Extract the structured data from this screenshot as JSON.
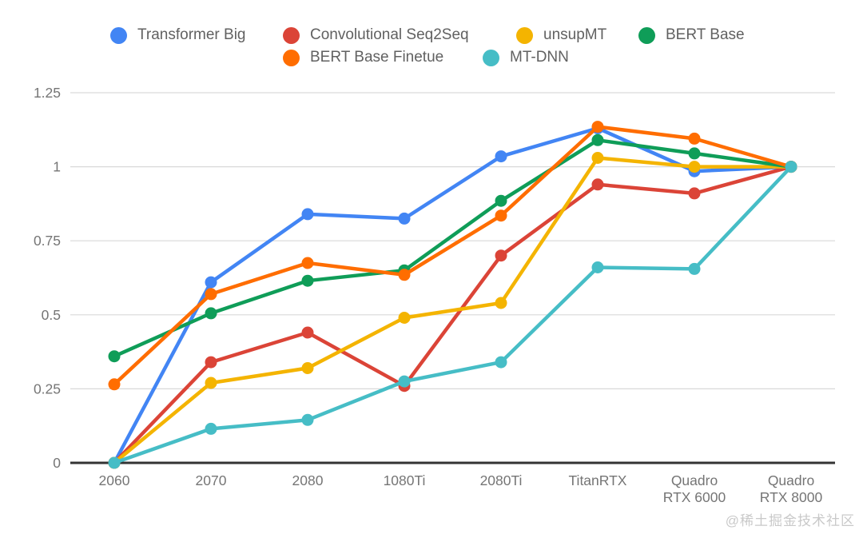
{
  "chart_data": {
    "type": "line",
    "categories": [
      "2060",
      "2070",
      "2080",
      "1080Ti",
      "2080Ti",
      "TitanRTX",
      "Quadro RTX 6000",
      "Quadro RTX 8000"
    ],
    "x_tick_labels": [
      "2060",
      "2070",
      "2080",
      "1080Ti",
      "2080Ti",
      "TitanRTX",
      "Quadro\nRTX 6000",
      "Quadro\nRTX 8000"
    ],
    "series": [
      {
        "name": "Transformer Big",
        "color": "#4285F4",
        "values": [
          0,
          0.61,
          0.84,
          0.825,
          1.035,
          1.13,
          0.985,
          1.0
        ]
      },
      {
        "name": "Convolutional Seq2Seq",
        "color": "#DB4437",
        "values": [
          0,
          0.34,
          0.44,
          0.26,
          0.7,
          0.94,
          0.91,
          1.0
        ]
      },
      {
        "name": "unsupMT",
        "color": "#F4B400",
        "values": [
          0,
          0.27,
          0.32,
          0.49,
          0.54,
          1.03,
          1.0,
          1.0
        ]
      },
      {
        "name": "BERT Base",
        "color": "#0F9D58",
        "values": [
          0.36,
          0.505,
          0.615,
          0.65,
          0.885,
          1.09,
          1.045,
          1.0
        ]
      },
      {
        "name": "BERT Base Finetue",
        "color": "#FF6D00",
        "values": [
          0.265,
          0.57,
          0.675,
          0.635,
          0.835,
          1.135,
          1.095,
          1.0
        ]
      },
      {
        "name": "MT-DNN",
        "color": "#46BDC6",
        "values": [
          0,
          0.115,
          0.145,
          0.275,
          0.34,
          0.66,
          0.655,
          1.0
        ]
      }
    ],
    "title": "",
    "xlabel": "",
    "ylabel": "",
    "ylim": [
      0,
      1.25
    ],
    "y_ticks": [
      0,
      0.25,
      0.5,
      0.75,
      1,
      1.25
    ],
    "y_tick_labels": [
      "0",
      "0.25",
      "0.5",
      "0.75",
      "1",
      "1.25"
    ],
    "grid": true,
    "legend_position": "top"
  },
  "colors": {
    "axis_text": "#757575",
    "legend_text": "#616161",
    "gridline": "#d9d9d9",
    "baseline": "#333333",
    "watermark": "#c9c9c9",
    "background": "#ffffff"
  },
  "watermark": "@稀土掘金技术社区"
}
